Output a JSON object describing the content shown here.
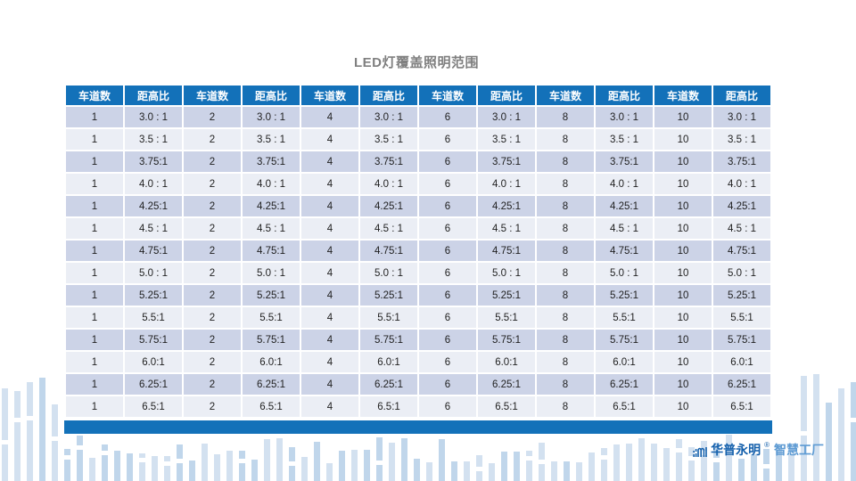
{
  "title": "LED灯覆盖照明范围",
  "table": {
    "lane_header": "车道数",
    "ratio_header": "距高比",
    "lane_groups": [
      "1",
      "2",
      "4",
      "6",
      "8",
      "10"
    ],
    "ratios": [
      "3.0 : 1",
      "3.5 : 1",
      "3.75:1",
      "4.0 : 1",
      "4.25:1",
      "4.5 : 1",
      "4.75:1",
      "5.0 : 1",
      "5.25:1",
      "5.5:1",
      "5.75:1",
      "6.0:1",
      "6.25:1",
      "6.5:1"
    ]
  },
  "brand": {
    "name": "华普永明",
    "reg": "®",
    "suffix": "智慧工厂"
  },
  "colors": {
    "header_blue": "#1371B9",
    "row_dark": "#CCD3E7",
    "row_light": "#EBEEF5",
    "title_gray": "#7F7F7F",
    "decor_bar": "#D3E1F0",
    "decor_bar_strong": "#C0D6EB",
    "brand_blue": "#1460AC",
    "brand_suffix_blue": "#5E9BD3"
  }
}
